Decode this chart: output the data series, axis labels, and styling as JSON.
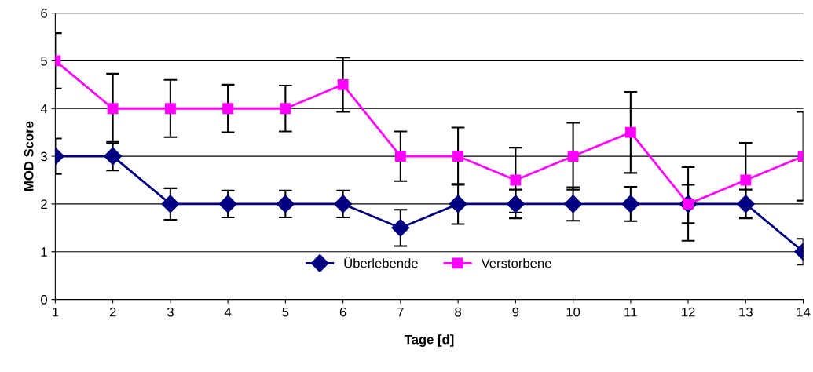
{
  "chart_data": {
    "type": "line",
    "xlabel": "Tage [d]",
    "ylabel": "MOD Score",
    "x": [
      1,
      2,
      3,
      4,
      5,
      6,
      7,
      8,
      9,
      10,
      11,
      12,
      13,
      14
    ],
    "xlim": [
      1,
      14
    ],
    "xticks": [
      1,
      2,
      3,
      4,
      5,
      6,
      7,
      8,
      9,
      10,
      11,
      12,
      13,
      14
    ],
    "ylim": [
      0,
      6
    ],
    "yticks": [
      0,
      1,
      2,
      3,
      4,
      5,
      6
    ],
    "grid": "y",
    "legend": "bottom",
    "series": [
      {
        "name": "Überlebende",
        "color": "#000080",
        "marker": "diamond",
        "values": [
          3,
          3,
          2,
          2,
          2,
          2,
          1.5,
          2,
          2,
          2,
          2,
          2,
          2,
          1
        ],
        "errors": [
          0.37,
          0.3,
          0.33,
          0.28,
          0.28,
          0.28,
          0.38,
          0.42,
          0.3,
          0.35,
          0.36,
          0.4,
          0.3,
          0.27
        ]
      },
      {
        "name": "Verstorbene",
        "color": "#ff00ff",
        "marker": "square",
        "values": [
          5,
          4,
          4,
          4,
          4,
          4.5,
          3,
          3,
          2.5,
          3,
          3.5,
          2,
          2.5,
          3
        ],
        "errors": [
          0.58,
          0.73,
          0.6,
          0.5,
          0.48,
          0.57,
          0.52,
          0.6,
          0.68,
          0.7,
          0.85,
          0.77,
          0.78,
          0.93
        ]
      }
    ]
  }
}
